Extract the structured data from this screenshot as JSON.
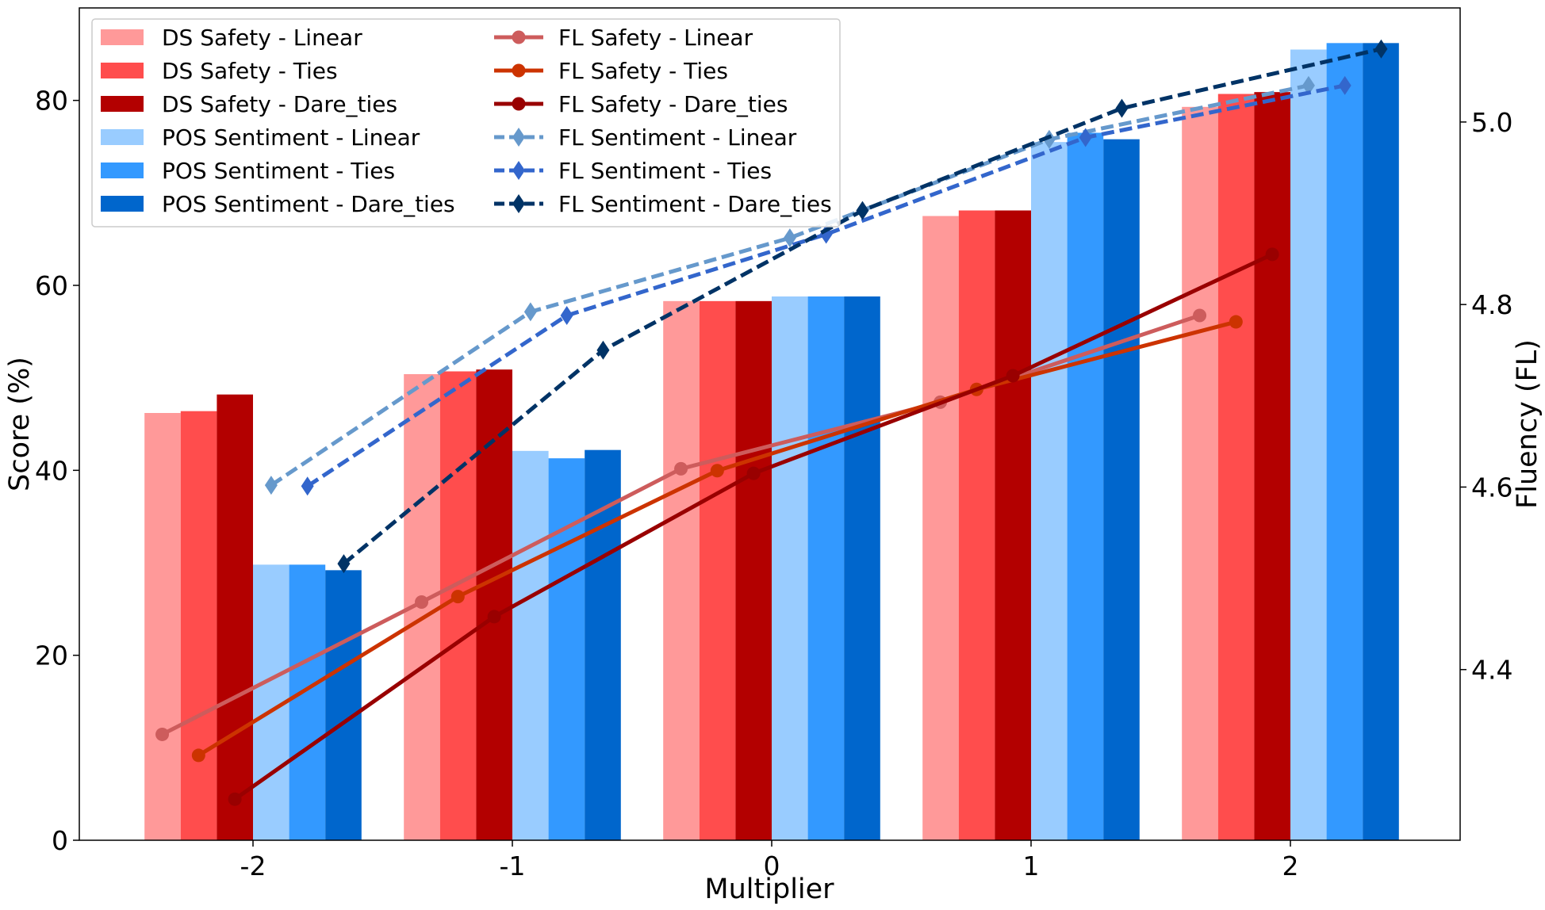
{
  "chart_data": {
    "type": "bar",
    "xlabel": "Multiplier",
    "ylabel": "Score (%)",
    "y2label": "Fluency (FL)",
    "categories": [
      "-2",
      "-1",
      "0",
      "1",
      "2"
    ],
    "ylim": [
      0,
      90
    ],
    "y2lim": [
      4.213,
      5.125
    ],
    "yticks": [
      0,
      20,
      40,
      60,
      80
    ],
    "y2ticks": [
      4.4,
      4.6,
      4.8,
      5.0
    ],
    "grid": false,
    "legend_placement": "top-left",
    "bar_series": [
      {
        "name": "DS Safety - Linear",
        "color": "#ff9999",
        "values": [
          46.2,
          50.4,
          58.3,
          67.5,
          79.3
        ]
      },
      {
        "name": "DS Safety - Ties",
        "color": "#ff4d4d",
        "values": [
          46.4,
          50.7,
          58.3,
          68.1,
          80.7
        ]
      },
      {
        "name": "DS Safety - Dare_ties",
        "color": "#b30000",
        "values": [
          48.2,
          50.9,
          58.3,
          68.1,
          80.9
        ]
      },
      {
        "name": "POS Sentiment - Linear",
        "color": "#99ccff",
        "values": [
          29.8,
          42.1,
          58.8,
          75.5,
          85.5
        ]
      },
      {
        "name": "POS Sentiment - Ties",
        "color": "#3399ff",
        "values": [
          29.8,
          41.3,
          58.8,
          76.5,
          86.2
        ]
      },
      {
        "name": "POS Sentiment - Dare_ties",
        "color": "#0066cc",
        "values": [
          29.2,
          42.2,
          58.8,
          75.8,
          86.2
        ]
      }
    ],
    "line_series": [
      {
        "name": "FL Safety - Linear",
        "color": "#cd5c5c",
        "marker": "circle",
        "dashed": false,
        "x_offset": -0.35,
        "values": [
          4.329,
          4.474,
          4.62,
          4.693,
          4.788
        ]
      },
      {
        "name": "FL Safety - Ties",
        "color": "#cc3300",
        "marker": "circle",
        "dashed": false,
        "x_offset": -0.21,
        "values": [
          4.306,
          4.48,
          4.618,
          4.707,
          4.781
        ]
      },
      {
        "name": "FL Safety - Dare_ties",
        "color": "#990000",
        "marker": "circle",
        "dashed": false,
        "x_offset": -0.07,
        "values": [
          4.258,
          4.458,
          4.615,
          4.722,
          4.855
        ]
      },
      {
        "name": "FL Sentiment - Linear",
        "color": "#6699cc",
        "marker": "diamond",
        "dashed": true,
        "x_offset": 0.07,
        "values": [
          4.602,
          4.792,
          4.873,
          4.981,
          5.04
        ]
      },
      {
        "name": "FL Sentiment - Ties",
        "color": "#3366cc",
        "marker": "diamond",
        "dashed": true,
        "x_offset": 0.21,
        "values": [
          4.601,
          4.788,
          4.877,
          4.983,
          5.04
        ]
      },
      {
        "name": "FL Sentiment - Dare_ties",
        "color": "#003366",
        "marker": "diamond",
        "dashed": true,
        "x_offset": 0.35,
        "values": [
          4.516,
          4.75,
          4.903,
          5.015,
          5.08
        ]
      }
    ]
  }
}
